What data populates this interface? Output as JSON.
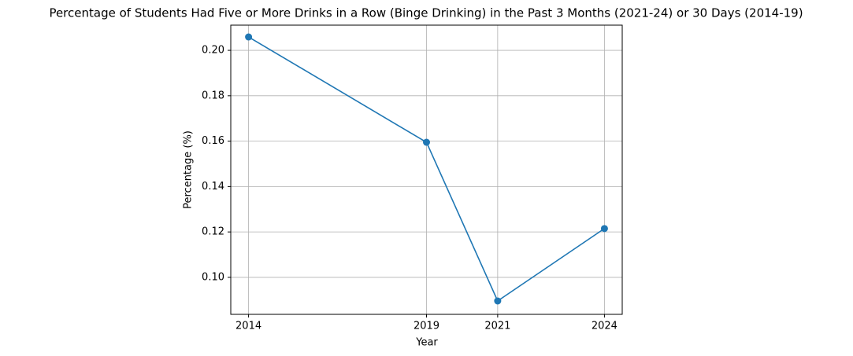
{
  "chart_data": {
    "type": "line",
    "title": "Percentage of Students Had Five or More Drinks in a Row (Binge Drinking) in the Past 3 Months (2021-24) or 30 Days (2014-19)",
    "x_label": "Year",
    "y_label": "Percentage (%)",
    "x": [
      2014,
      2019,
      2021,
      2024
    ],
    "series": [
      {
        "name": "Percentage",
        "color": "#1f77b4",
        "values": [
          0.2059,
          0.1595,
          0.0896,
          0.1215
        ]
      }
    ],
    "xlim": [
      2013.5,
      2024.5
    ],
    "xticks": [
      2014,
      2019,
      2021,
      2024
    ],
    "ylim": [
      0.0837,
      0.2111
    ],
    "yticks": [
      {
        "value": 0.1,
        "label": "0.10"
      },
      0.12,
      0.14,
      0.16,
      0.18,
      {
        "value": 0.2,
        "label": "0.20"
      }
    ],
    "grid": true
  }
}
